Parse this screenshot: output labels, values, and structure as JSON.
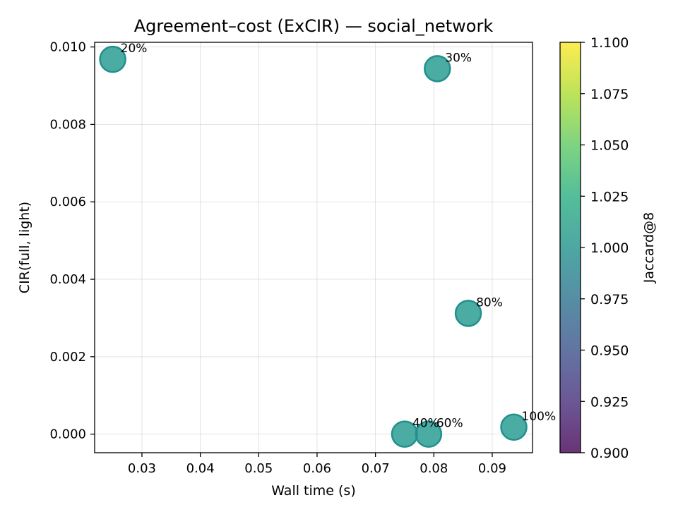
{
  "chart_data": {
    "type": "scatter",
    "title": "Agreement–cost (ExCIR) — social_network",
    "xlabel": "Wall time (s)",
    "ylabel": "CIR(full, light)",
    "xlim": [
      0.0219,
      0.0969
    ],
    "ylim": [
      -0.00048,
      0.01012
    ],
    "xticks": [
      0.03,
      0.04,
      0.05,
      0.06,
      0.07,
      0.08,
      0.09
    ],
    "xtick_labels": [
      "0.03",
      "0.04",
      "0.05",
      "0.06",
      "0.07",
      "0.08",
      "0.09"
    ],
    "yticks": [
      0.0,
      0.002,
      0.004,
      0.006,
      0.008,
      0.01
    ],
    "ytick_labels": [
      "0.000",
      "0.002",
      "0.004",
      "0.006",
      "0.008",
      "0.010"
    ],
    "grid": true,
    "points": [
      {
        "label": "20%",
        "x": 0.025,
        "y": 0.00968,
        "color_value": 1.0
      },
      {
        "label": "30%",
        "x": 0.0806,
        "y": 0.00944,
        "color_value": 1.0
      },
      {
        "label": "80%",
        "x": 0.0859,
        "y": 0.00312,
        "color_value": 1.0
      },
      {
        "label": "40%",
        "x": 0.075,
        "y": 0.0,
        "color_value": 1.0
      },
      {
        "label": "60%",
        "x": 0.0791,
        "y": 0.0,
        "color_value": 1.0
      },
      {
        "label": "100%",
        "x": 0.0937,
        "y": 0.00018,
        "color_value": 1.0
      }
    ],
    "colorbar": {
      "label": "Jaccard@8",
      "colormap": "viridis",
      "range": [
        0.9,
        1.1
      ],
      "ticks": [
        0.9,
        0.925,
        0.95,
        0.975,
        1.0,
        1.025,
        1.05,
        1.075,
        1.1
      ],
      "tick_labels": [
        "0.900",
        "0.925",
        "0.950",
        "0.975",
        "1.000",
        "1.025",
        "1.050",
        "1.075",
        "1.100"
      ]
    },
    "marker_color": "#2a9d93",
    "marker_edge_color": "#21908c"
  }
}
